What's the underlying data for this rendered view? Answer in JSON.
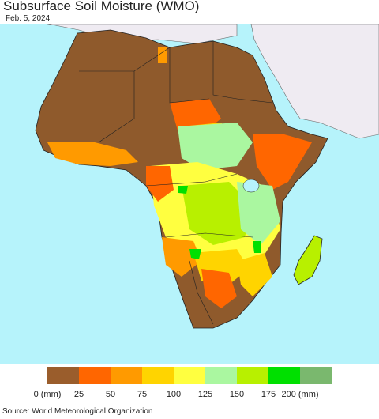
{
  "title": "Subsurface Soil Moisture (WMO)",
  "date": "Feb. 5, 2024",
  "source": "Source: World Meteorological Organization",
  "legend": {
    "labels": [
      "0 (mm)",
      "25",
      "50",
      "75",
      "100",
      "125",
      "150",
      "175",
      "200 (mm)"
    ],
    "colors": [
      "#9a5d2c",
      "#ff6600",
      "#ff9a00",
      "#ffd400",
      "#ffff40",
      "#aaf7a0",
      "#b8f000",
      "#00e000",
      "#7ab86e"
    ]
  },
  "map_colors": {
    "ocean": "#b6f3fb",
    "dry": "#8f5a2c",
    "non_africa_land": "#efebf2",
    "borders": "#222222"
  }
}
